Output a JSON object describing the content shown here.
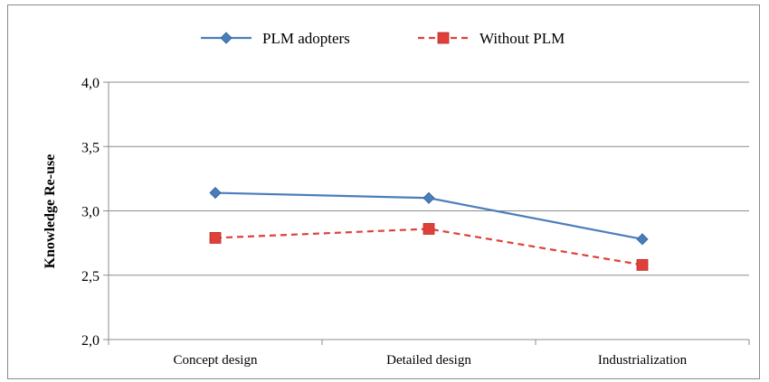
{
  "chart_data": {
    "type": "line",
    "title": "",
    "xlabel": "",
    "ylabel": "Knowledge Re-use",
    "categories": [
      "Concept design",
      "Detailed design",
      "Industrialization"
    ],
    "ylim": [
      2.0,
      4.0
    ],
    "yticks": [
      "2,0",
      "2,5",
      "3,0",
      "3,5",
      "4,0"
    ],
    "ytick_values": [
      2.0,
      2.5,
      3.0,
      3.5,
      4.0
    ],
    "grid": true,
    "legend_position": "top",
    "series": [
      {
        "name": "PLM adopters",
        "values": [
          3.14,
          3.1,
          2.78
        ],
        "color": "#4a7ebb",
        "line_style": "solid",
        "marker": "diamond"
      },
      {
        "name": "Without PLM",
        "values": [
          2.79,
          2.86,
          2.58
        ],
        "color": "#e0403a",
        "line_style": "dashed",
        "marker": "square"
      }
    ]
  }
}
